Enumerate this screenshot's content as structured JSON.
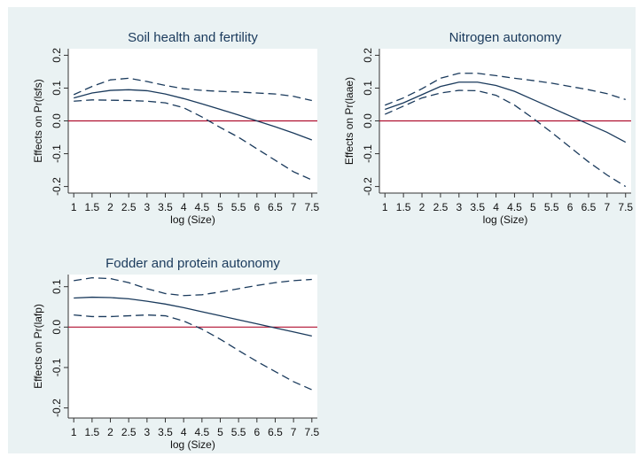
{
  "chart_data": [
    {
      "type": "line",
      "title": "Soil health and fertility",
      "xlabel": "log (Size)",
      "ylabel": "Effects on Pr(lsfs)",
      "x": [
        1,
        1.5,
        2,
        2.5,
        3,
        3.5,
        4,
        4.5,
        5,
        5.5,
        6,
        6.5,
        7,
        7.5
      ],
      "series": [
        {
          "color": "#1a3a5c",
          "dash": false,
          "values": [
            0.07,
            0.085,
            0.093,
            0.095,
            0.092,
            0.082,
            0.068,
            0.052,
            0.035,
            0.018,
            0.0,
            -0.018,
            -0.037,
            -0.058
          ]
        },
        {
          "color": "#1a3a5c",
          "dash": true,
          "values": [
            0.08,
            0.105,
            0.125,
            0.13,
            0.12,
            0.108,
            0.098,
            0.093,
            0.09,
            0.088,
            0.085,
            0.082,
            0.075,
            0.062
          ]
        },
        {
          "color": "#1a3a5c",
          "dash": true,
          "values": [
            0.06,
            0.064,
            0.063,
            0.062,
            0.06,
            0.055,
            0.04,
            0.012,
            -0.02,
            -0.05,
            -0.085,
            -0.12,
            -0.155,
            -0.18
          ]
        }
      ],
      "xlim": [
        0.85,
        7.65
      ],
      "xticks": [
        1,
        1.5,
        2,
        2.5,
        3,
        3.5,
        4,
        4.5,
        5,
        5.5,
        6,
        6.5,
        7,
        7.5
      ],
      "ylim": [
        -0.22,
        0.22
      ],
      "yticks": [
        -0.2,
        -0.1,
        {
          "value": 0,
          "label": "0.0"
        },
        0.1,
        0.2
      ],
      "hline": 0,
      "hline_color": "#b01030"
    },
    {
      "type": "line",
      "title": "Nitrogen autonomy",
      "xlabel": "log (Size)",
      "ylabel": "Effects on Pr(laae)",
      "x": [
        1,
        1.5,
        2,
        2.5,
        3,
        3.5,
        4,
        4.5,
        5,
        5.5,
        6,
        6.5,
        7,
        7.5
      ],
      "series": [
        {
          "color": "#1a3a5c",
          "dash": false,
          "values": [
            0.035,
            0.055,
            0.08,
            0.105,
            0.118,
            0.118,
            0.108,
            0.09,
            0.065,
            0.04,
            0.015,
            -0.01,
            -0.035,
            -0.065
          ]
        },
        {
          "color": "#1a3a5c",
          "dash": true,
          "values": [
            0.048,
            0.07,
            0.098,
            0.13,
            0.145,
            0.145,
            0.138,
            0.13,
            0.123,
            0.115,
            0.105,
            0.095,
            0.083,
            0.065
          ]
        },
        {
          "color": "#1a3a5c",
          "dash": true,
          "values": [
            0.02,
            0.045,
            0.07,
            0.085,
            0.093,
            0.092,
            0.078,
            0.048,
            0.008,
            -0.035,
            -0.08,
            -0.125,
            -0.165,
            -0.2
          ]
        }
      ],
      "xlim": [
        0.85,
        7.65
      ],
      "xticks": [
        1,
        1.5,
        2,
        2.5,
        3,
        3.5,
        4,
        4.5,
        5,
        5.5,
        6,
        6.5,
        7,
        7.5
      ],
      "ylim": [
        -0.22,
        0.22
      ],
      "yticks": [
        -0.2,
        -0.1,
        {
          "value": 0,
          "label": "0.0"
        },
        0.1,
        0.2
      ],
      "hline": 0,
      "hline_color": "#b01030"
    },
    {
      "type": "line",
      "title": "Fodder and protein autonomy",
      "xlabel": "log (Size)",
      "ylabel": "Effects on Pr(lafp)",
      "x": [
        1,
        1.5,
        2,
        2.5,
        3,
        3.5,
        4,
        4.5,
        5,
        5.5,
        6,
        6.5,
        7,
        7.5
      ],
      "series": [
        {
          "color": "#1a3a5c",
          "dash": false,
          "values": [
            0.072,
            0.074,
            0.073,
            0.07,
            0.064,
            0.057,
            0.048,
            0.038,
            0.028,
            0.018,
            0.008,
            -0.002,
            -0.012,
            -0.022
          ]
        },
        {
          "color": "#1a3a5c",
          "dash": true,
          "values": [
            0.115,
            0.122,
            0.12,
            0.11,
            0.095,
            0.083,
            0.078,
            0.08,
            0.087,
            0.095,
            0.103,
            0.11,
            0.115,
            0.118
          ]
        },
        {
          "color": "#1a3a5c",
          "dash": true,
          "values": [
            0.03,
            0.026,
            0.026,
            0.028,
            0.03,
            0.028,
            0.015,
            -0.005,
            -0.03,
            -0.058,
            -0.085,
            -0.11,
            -0.135,
            -0.155
          ]
        }
      ],
      "xlim": [
        0.85,
        7.65
      ],
      "xticks": [
        1,
        1.5,
        2,
        2.5,
        3,
        3.5,
        4,
        4.5,
        5,
        5.5,
        6,
        6.5,
        7,
        7.5
      ],
      "ylim": [
        -0.225,
        0.13
      ],
      "yticks": [
        -0.2,
        -0.1,
        {
          "value": 0,
          "label": "0.0"
        },
        0.1
      ],
      "hline": 0,
      "hline_color": "#b01030"
    }
  ]
}
